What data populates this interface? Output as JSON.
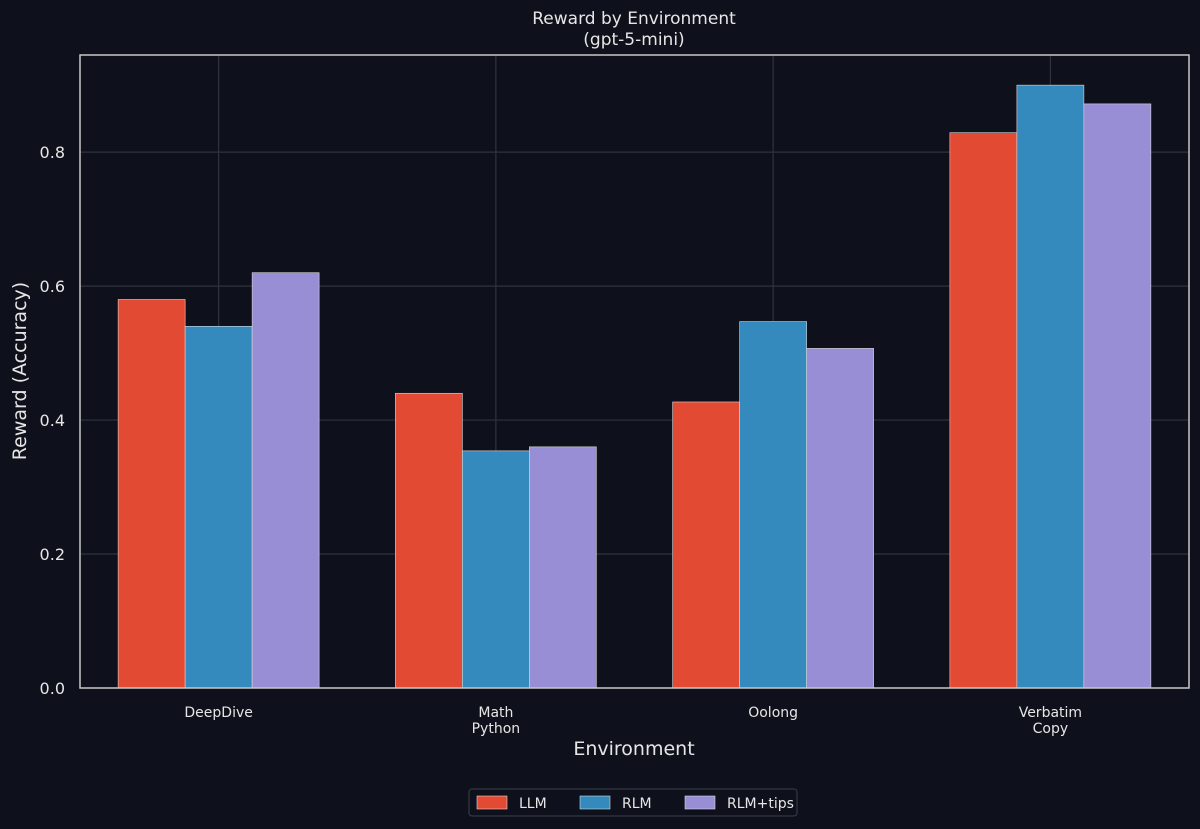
{
  "chart_data": {
    "type": "bar",
    "title": "Reward by Environment",
    "subtitle": "(gpt-5-mini)",
    "xlabel": "Environment",
    "ylabel": "Reward (Accuracy)",
    "ylim": [
      0,
      0.945
    ],
    "yticks": [
      0.0,
      0.2,
      0.4,
      0.6,
      0.8
    ],
    "ytick_labels": [
      "0.0",
      "0.2",
      "0.4",
      "0.6",
      "0.8"
    ],
    "grid": true,
    "legend_position": "bottom-center",
    "categories": [
      [
        "DeepDive"
      ],
      [
        "Math",
        "Python"
      ],
      [
        "Oolong"
      ],
      [
        "Verbatim",
        "Copy"
      ]
    ],
    "series": [
      {
        "name": "LLM",
        "color": "#e24a33",
        "values": [
          0.58,
          0.44,
          0.427,
          0.829
        ]
      },
      {
        "name": "RLM",
        "color": "#348abd",
        "values": [
          0.54,
          0.354,
          0.547,
          0.9
        ]
      },
      {
        "name": "RLM+tips",
        "color": "#988ed5",
        "values": [
          0.62,
          0.36,
          0.507,
          0.872
        ]
      }
    ]
  }
}
